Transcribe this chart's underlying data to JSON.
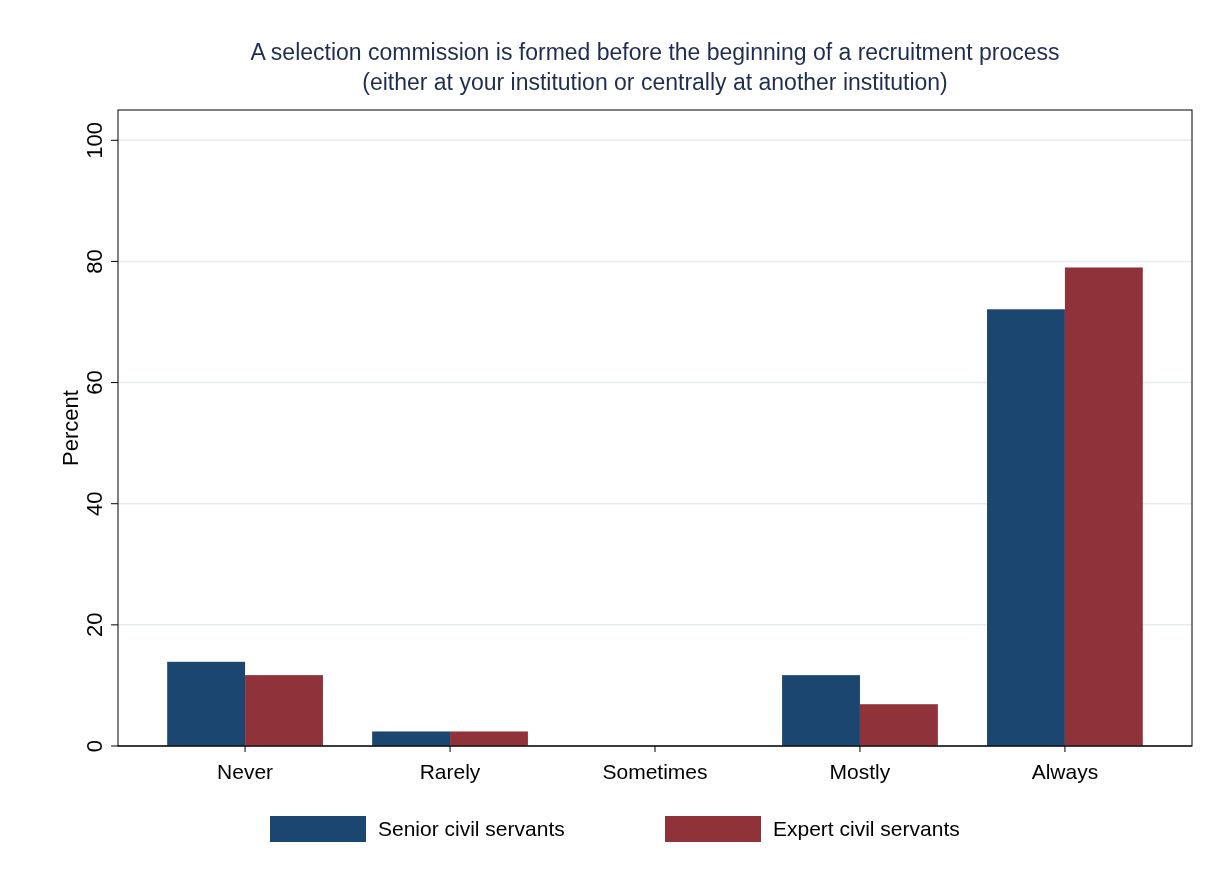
{
  "chart_data": {
    "type": "bar",
    "title": "A selection commission is formed before the beginning of a recruitment process",
    "subtitle": "(either at your institution or centrally at another institution)",
    "ylabel": "Percent",
    "categories": [
      "Never",
      "Rarely",
      "Sometimes",
      "Mostly",
      "Always"
    ],
    "series": [
      {
        "name": "Senior civil servants",
        "color": "#1a4670",
        "values": [
          13.9,
          2.4,
          0,
          11.7,
          72.1
        ]
      },
      {
        "name": "Expert civil servants",
        "color": "#8f323a",
        "values": [
          11.7,
          2.4,
          0,
          6.9,
          79.0
        ]
      }
    ],
    "ylim": [
      0,
      105
    ],
    "yticks": [
      0,
      20,
      40,
      60,
      80,
      100
    ],
    "grid": "y",
    "legend": "bottom"
  }
}
